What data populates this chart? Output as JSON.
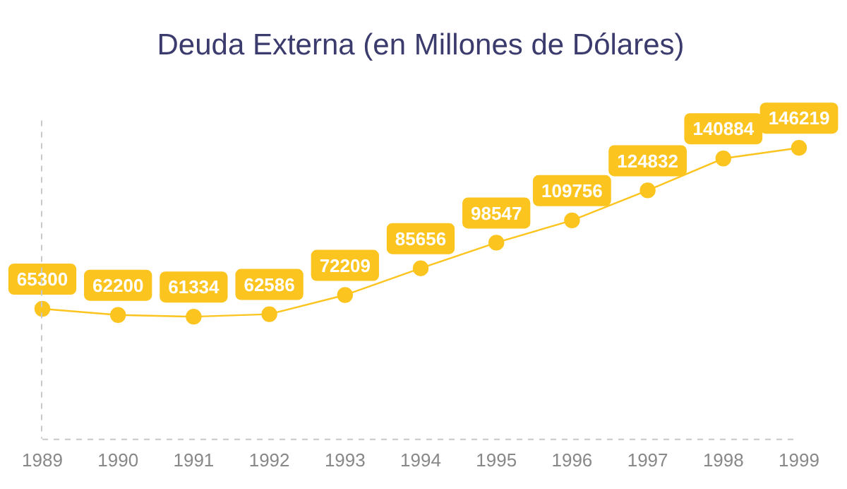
{
  "chart_data": {
    "type": "line",
    "title": "Deuda Externa (en Millones de Dólares)",
    "categories": [
      "1989",
      "1990",
      "1991",
      "1992",
      "1993",
      "1994",
      "1995",
      "1996",
      "1997",
      "1998",
      "1999"
    ],
    "values": [
      65300,
      62200,
      61334,
      62586,
      72209,
      85656,
      98547,
      109756,
      124832,
      140884,
      146219
    ],
    "color": "#fbc41f",
    "marker": "circle",
    "line_style": "solid",
    "data_labels": true,
    "legend": false,
    "tick_labels": "x"
  }
}
